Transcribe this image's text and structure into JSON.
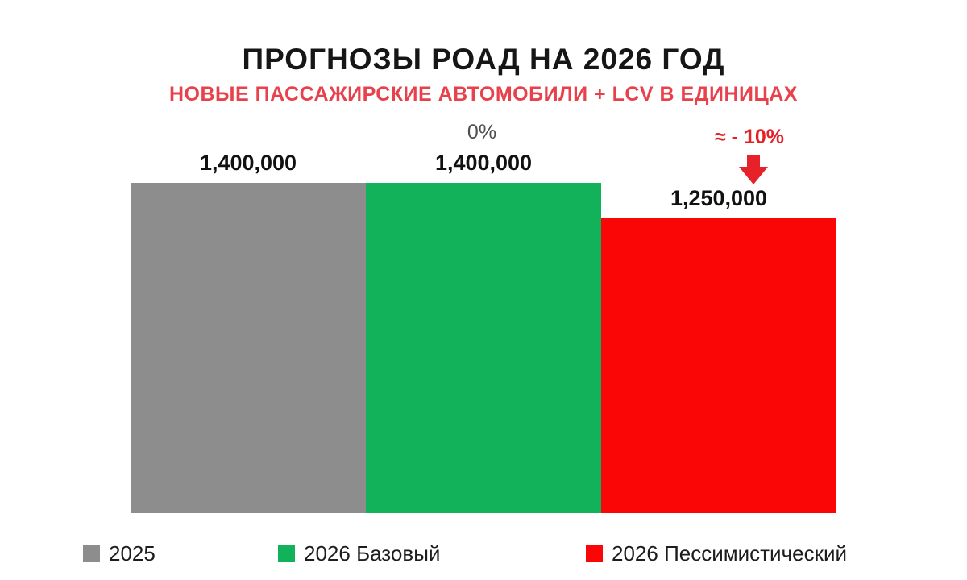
{
  "header": {
    "title": "ПРОГНОЗЫ РОАД НА 2026 ГОД",
    "subtitle": "НОВЫЕ ПАССАЖИРСКИЕ АВТОМОБИЛИ + LCV В ЕДИНИЦАХ"
  },
  "chart_data": {
    "type": "bar",
    "title": "ПРОГНОЗЫ РОАД НА 2026 ГОД",
    "subtitle": "НОВЫЕ ПАССАЖИРСКИЕ АВТОМОБИЛИ + LCV В ЕДИНИЦАХ",
    "categories": [
      "2025",
      "2026 Базовый",
      "2026 Пессимистический"
    ],
    "values": [
      1400000,
      1400000,
      1250000
    ],
    "value_labels": [
      "1,400,000",
      "1,400,000",
      "1,250,000"
    ],
    "annotations": [
      "",
      "0%",
      "≈ - 10%"
    ],
    "bar_colors": [
      "#8d8d8d",
      "#12b25b",
      "#fb0606"
    ],
    "ylim": [
      0,
      1400000
    ],
    "grid": false,
    "legend_position": "bottom",
    "legend": [
      {
        "label": "2025",
        "color": "#8d8d8d"
      },
      {
        "label": "2026 Базовый",
        "color": "#12b25b"
      },
      {
        "label": "2026 Пессимистический",
        "color": "#fb0606"
      }
    ]
  },
  "colors": {
    "title_black": "#161616",
    "subtitle_red": "#e8414b",
    "annotation_red": "#e32227",
    "annotation_gray": "#4f4f4f",
    "arrow_red": "#e62129"
  }
}
